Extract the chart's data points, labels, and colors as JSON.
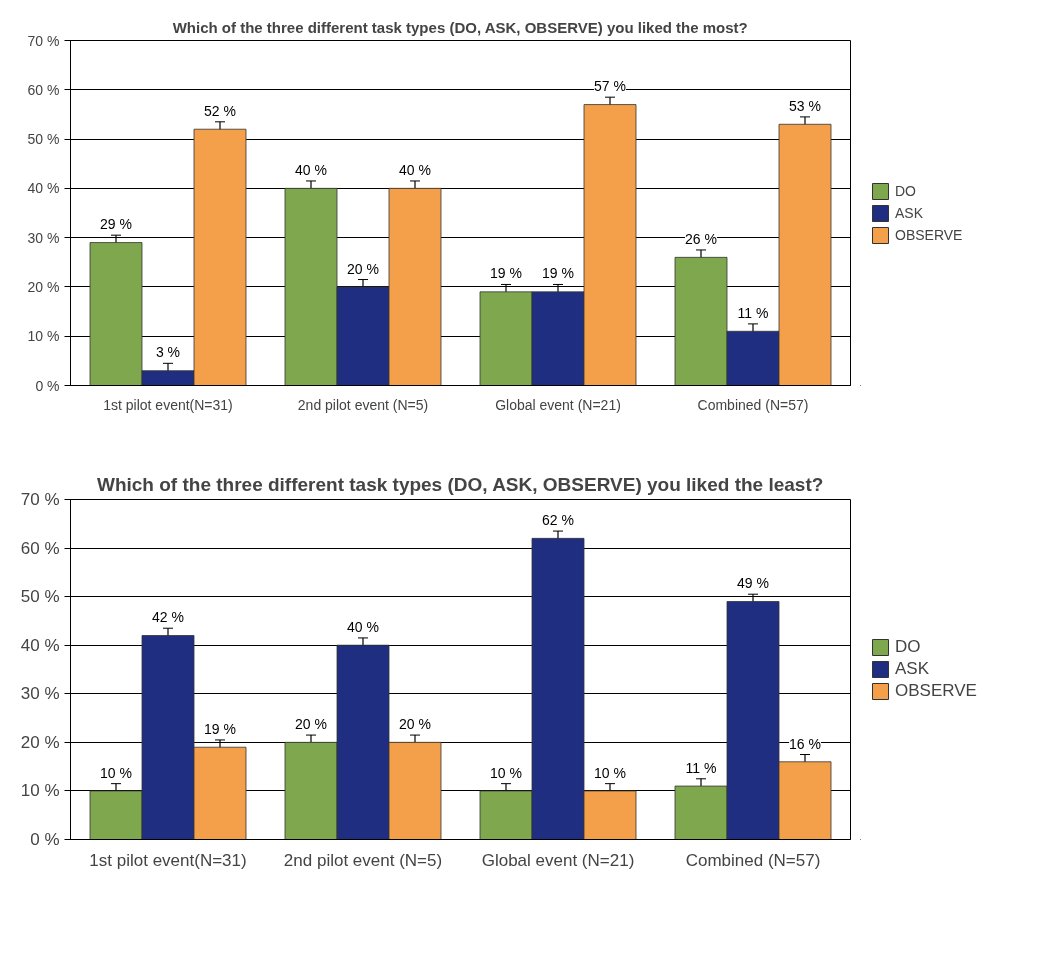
{
  "chart_data": [
    {
      "type": "bar",
      "title": "Which of the three different task types (DO, ASK, OBSERVE) you liked the most?",
      "categories": [
        "1st pilot event(N=31)",
        "2nd pilot event (N=5)",
        "Global event (N=21)",
        "Combined (N=57)"
      ],
      "series": [
        {
          "name": "DO",
          "color": "#7fa84e",
          "values": [
            29,
            40,
            19,
            26
          ],
          "errors": [
            1.5,
            1.5,
            1.5,
            1.5
          ],
          "value_labels": [
            "29 %",
            "40 %",
            "19 %",
            "26 %"
          ]
        },
        {
          "name": "ASK",
          "color": "#1f2e80",
          "values": [
            3,
            20,
            19,
            11
          ],
          "errors": [
            1.5,
            1.5,
            1.5,
            1.5
          ],
          "value_labels": [
            "3 %",
            "20 %",
            "19 %",
            "11 %"
          ]
        },
        {
          "name": "OBSERVE",
          "color": "#f4a04a",
          "values": [
            52,
            40,
            57,
            53
          ],
          "errors": [
            1.5,
            1.5,
            1.5,
            1.5
          ],
          "value_labels": [
            "52 %",
            "40 %",
            "57 %",
            "53 %"
          ]
        }
      ],
      "ylim": [
        0,
        70
      ],
      "yticks": [
        {
          "value": 0,
          "label": "0 %"
        },
        {
          "value": 10,
          "label": "10 %"
        },
        {
          "value": 20,
          "label": "20 %"
        },
        {
          "value": 30,
          "label": "30 %"
        },
        {
          "value": 40,
          "label": "40 %"
        },
        {
          "value": 50,
          "label": "50 %"
        },
        {
          "value": 60,
          "label": "60 %"
        },
        {
          "value": 70,
          "label": "70 %"
        }
      ],
      "grid": "y",
      "legend": "right"
    },
    {
      "type": "bar",
      "title": "Which of the three different task types (DO, ASK, OBSERVE) you liked the least?",
      "categories": [
        "1st pilot event(N=31)",
        "2nd pilot event (N=5)",
        "Global event (N=21)",
        "Combined (N=57)"
      ],
      "series": [
        {
          "name": "DO",
          "color": "#7fa84e",
          "values": [
            10,
            20,
            10,
            11
          ],
          "errors": [
            1.5,
            1.5,
            1.5,
            1.5
          ],
          "value_labels": [
            "10 %",
            "20 %",
            "10 %",
            "11 %"
          ]
        },
        {
          "name": "ASK",
          "color": "#1f2e80",
          "values": [
            42,
            40,
            62,
            49
          ],
          "errors": [
            1.5,
            1.5,
            1.5,
            1.5
          ],
          "value_labels": [
            "42 %",
            "40 %",
            "62 %",
            "49 %"
          ]
        },
        {
          "name": "OBSERVE",
          "color": "#f4a04a",
          "values": [
            19,
            20,
            10,
            16
          ],
          "errors": [
            1.5,
            1.5,
            1.5,
            1.5
          ],
          "value_labels": [
            "19 %",
            "20 %",
            "10 %",
            "16 %"
          ]
        }
      ],
      "ylim": [
        0,
        70
      ],
      "yticks": [
        {
          "value": 0,
          "label": "0 %"
        },
        {
          "value": 10,
          "label": "10 %"
        },
        {
          "value": 20,
          "label": "20 %"
        },
        {
          "value": 30,
          "label": "30 %"
        },
        {
          "value": 40,
          "label": "40 %"
        },
        {
          "value": 50,
          "label": "50 %"
        },
        {
          "value": 60,
          "label": "60 %"
        },
        {
          "value": 70,
          "label": "70 %"
        }
      ],
      "grid": "y",
      "legend": "right"
    }
  ]
}
